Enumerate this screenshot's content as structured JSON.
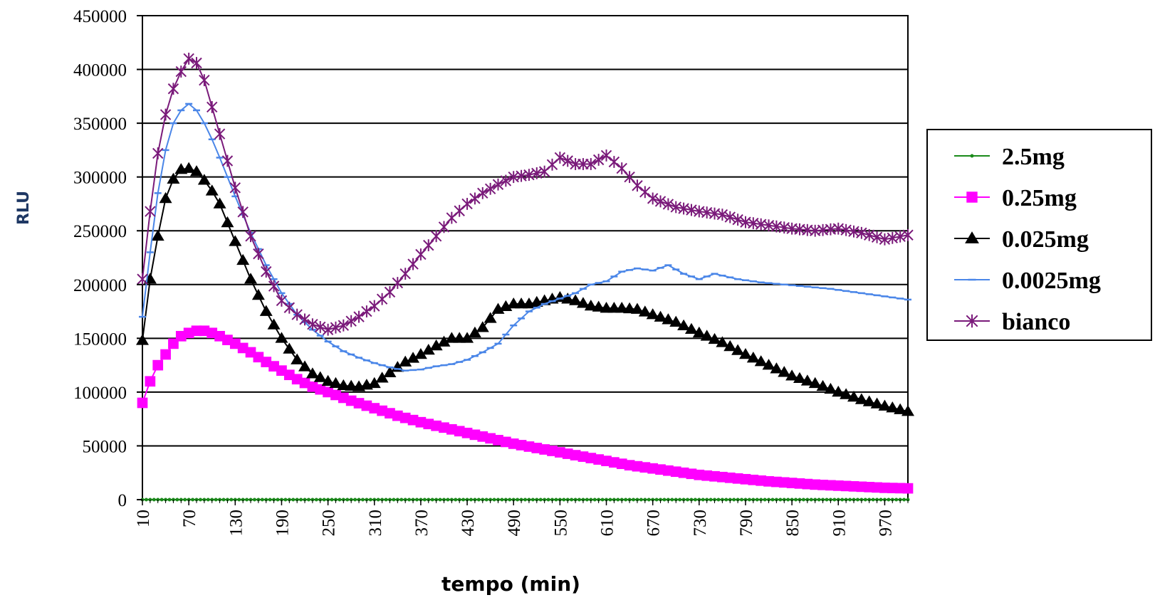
{
  "chart_data": {
    "type": "line",
    "title": "",
    "xlabel": "tempo (min)",
    "ylabel": "RLU",
    "xlim": [
      10,
      1000
    ],
    "ylim": [
      0,
      450000
    ],
    "y_ticks": [
      0,
      50000,
      100000,
      150000,
      200000,
      250000,
      300000,
      350000,
      400000,
      450000
    ],
    "y_tick_labels": [
      "0",
      "50000",
      "100000",
      "150000",
      "200000",
      "250000",
      "300000",
      "350000",
      "400000",
      "450000"
    ],
    "x_ticks": [
      10,
      70,
      130,
      190,
      250,
      310,
      370,
      430,
      490,
      550,
      610,
      670,
      730,
      790,
      850,
      910,
      970
    ],
    "x_tick_labels": [
      "10",
      "70",
      "130",
      "190",
      "250",
      "310",
      "370",
      "430",
      "490",
      "550",
      "610",
      "670",
      "730",
      "790",
      "850",
      "910",
      "970"
    ],
    "grid": "horizontal",
    "legend_position": "right",
    "series": [
      {
        "name": "2.5mg",
        "color": "#1a8a1a",
        "marker": "dot",
        "x": [
          10,
          1000
        ],
        "y": [
          0,
          0
        ]
      },
      {
        "name": "0.25mg",
        "color": "#ff00ff",
        "marker": "square",
        "x": [
          10,
          20,
          30,
          40,
          50,
          60,
          70,
          80,
          90,
          100,
          110,
          130,
          150,
          170,
          190,
          210,
          230,
          250,
          280,
          310,
          340,
          370,
          400,
          430,
          460,
          490,
          520,
          550,
          580,
          610,
          640,
          670,
          700,
          730,
          760,
          790,
          820,
          850,
          880,
          910,
          940,
          970,
          1000
        ],
        "y": [
          90000,
          110000,
          125000,
          135000,
          145000,
          152000,
          155000,
          157000,
          157000,
          155000,
          152000,
          145000,
          137000,
          128000,
          120000,
          112000,
          105000,
          100000,
          92000,
          85000,
          78000,
          72000,
          67000,
          62000,
          57000,
          52000,
          48000,
          44000,
          40000,
          36000,
          32000,
          29000,
          26000,
          23000,
          21000,
          19000,
          17000,
          15500,
          14000,
          13000,
          12000,
          11000,
          10500
        ]
      },
      {
        "name": "0.025mg",
        "color": "#000000",
        "marker": "triangle",
        "x": [
          10,
          20,
          30,
          40,
          50,
          60,
          70,
          80,
          90,
          100,
          110,
          130,
          150,
          170,
          190,
          210,
          230,
          250,
          270,
          290,
          310,
          330,
          350,
          370,
          390,
          410,
          430,
          450,
          470,
          490,
          510,
          530,
          550,
          570,
          590,
          610,
          630,
          650,
          670,
          700,
          730,
          760,
          790,
          820,
          850,
          880,
          910,
          940,
          970,
          1000
        ],
        "y": [
          148000,
          205000,
          245000,
          280000,
          298000,
          307000,
          308000,
          305000,
          297000,
          287000,
          275000,
          240000,
          205000,
          175000,
          150000,
          130000,
          117000,
          110000,
          106000,
          105000,
          108000,
          118000,
          128000,
          135000,
          143000,
          150000,
          150000,
          160000,
          177000,
          182000,
          182000,
          185000,
          188000,
          185000,
          180000,
          178000,
          178000,
          177000,
          172000,
          165000,
          155000,
          146000,
          135000,
          125000,
          115000,
          108000,
          100000,
          93000,
          87000,
          82000
        ]
      },
      {
        "name": "0.0025mg",
        "color": "#4a86e8",
        "marker": "dash",
        "x": [
          10,
          20,
          30,
          40,
          50,
          60,
          70,
          80,
          90,
          100,
          110,
          130,
          150,
          170,
          190,
          210,
          230,
          250,
          270,
          290,
          310,
          330,
          350,
          370,
          390,
          410,
          430,
          450,
          470,
          490,
          510,
          530,
          550,
          570,
          590,
          610,
          630,
          650,
          670,
          690,
          710,
          730,
          750,
          780,
          810,
          840,
          870,
          900,
          930,
          960,
          1000
        ],
        "y": [
          170000,
          230000,
          285000,
          325000,
          350000,
          362000,
          368000,
          362000,
          350000,
          335000,
          318000,
          282000,
          248000,
          218000,
          192000,
          172000,
          158000,
          147000,
          138000,
          132000,
          127000,
          123000,
          120000,
          121000,
          124000,
          126000,
          130000,
          137000,
          145000,
          162000,
          175000,
          182000,
          187000,
          192000,
          200000,
          203000,
          212000,
          215000,
          213000,
          218000,
          210000,
          205000,
          210000,
          205000,
          202000,
          200000,
          198000,
          196000,
          193000,
          190000,
          186000
        ]
      },
      {
        "name": "bianco",
        "color": "#7a1a7a",
        "marker": "star",
        "x": [
          10,
          20,
          30,
          40,
          50,
          60,
          70,
          80,
          90,
          100,
          110,
          130,
          150,
          170,
          190,
          210,
          230,
          250,
          270,
          290,
          310,
          330,
          350,
          370,
          390,
          410,
          430,
          450,
          470,
          490,
          510,
          530,
          550,
          570,
          590,
          610,
          630,
          650,
          670,
          700,
          730,
          760,
          790,
          820,
          850,
          880,
          910,
          940,
          970,
          1000
        ],
        "y": [
          205000,
          268000,
          322000,
          358000,
          382000,
          398000,
          410000,
          406000,
          390000,
          365000,
          340000,
          290000,
          245000,
          212000,
          185000,
          172000,
          163000,
          158000,
          162000,
          170000,
          180000,
          193000,
          210000,
          228000,
          245000,
          262000,
          275000,
          285000,
          293000,
          300000,
          302000,
          305000,
          318000,
          312000,
          312000,
          320000,
          308000,
          292000,
          280000,
          272000,
          268000,
          265000,
          258000,
          255000,
          252000,
          250000,
          252000,
          248000,
          242000,
          246000
        ]
      }
    ]
  }
}
